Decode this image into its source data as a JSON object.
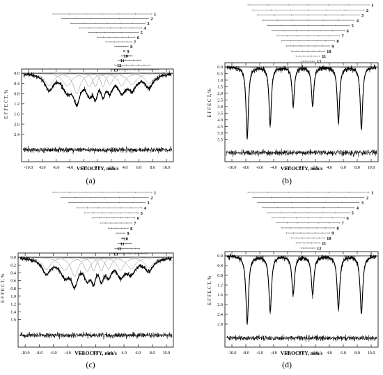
{
  "panels": [
    {
      "label": "(a)",
      "ylabel": "E F F E C T, %",
      "xlabel": "VELOCITY, mm/s",
      "yticks": [
        "0.0",
        "0.4",
        "0.8",
        "1.2",
        "1.6",
        "2.0",
        "2.4"
      ],
      "xticks": [
        "-10.0",
        "-8.0",
        "-6.0",
        "-4.0",
        "-2.0",
        "0.0",
        "2.0",
        "4.0",
        "6.0",
        "8.0",
        "10.0"
      ],
      "components": [
        "1",
        "2",
        "3",
        "4",
        "5",
        "6",
        "7",
        "8",
        "9",
        "10",
        "11",
        "12",
        "13"
      ]
    },
    {
      "label": "(b)",
      "ylabel": "E F F E C T, %",
      "xlabel": "VELOCITY, mm/s",
      "yticks": [
        "0.0",
        "0.5",
        "1.0",
        "1.5",
        "2.0",
        "2.5",
        "3.0",
        "3.5",
        "4.0",
        "4.5",
        "5.0",
        "5.5"
      ],
      "xticks": [
        "-10.0",
        "-8.0",
        "-6.0",
        "-4.0",
        "-2.0",
        "0.0",
        "2.0",
        "4.0",
        "6.0",
        "8.0",
        "10.0"
      ],
      "components": [
        "1",
        "2",
        "3",
        "4",
        "5",
        "6",
        "7",
        "8",
        "9",
        "10",
        "11",
        "12"
      ]
    },
    {
      "label": "(c)",
      "ylabel": "E F F E C T, %",
      "xlabel": "VELOCITY, mm/s",
      "yticks": [
        "0.0",
        "0.2",
        "0.4",
        "0.6",
        "0.8",
        "1.0",
        "1.2",
        "1.4",
        "1.6"
      ],
      "xticks": [
        "-10.0",
        "-8.0",
        "-6.0",
        "-4.0",
        "-2.0",
        "0.0",
        "2.0",
        "4.0",
        "6.0",
        "8.0",
        "10.0"
      ],
      "components": [
        "1",
        "2",
        "3",
        "4",
        "5",
        "6",
        "7",
        "8",
        "9",
        "10",
        "11",
        "12",
        "13"
      ]
    },
    {
      "label": "(d)",
      "ylabel": "E F F E C T, %",
      "xlabel": "VELOCITY, mm/s",
      "yticks": [
        "0.0",
        "0.4",
        "0.8",
        "1.2",
        "1.6",
        "2.0",
        "2.4",
        "2.8"
      ],
      "xticks": [
        "-10.0",
        "-8.0",
        "-6.0",
        "-4.0",
        "-2.0",
        "0.0",
        "2.0",
        "4.0",
        "6.0",
        "8.0",
        "10.0"
      ],
      "components": [
        "1",
        "2",
        "3",
        "4",
        "5",
        "6",
        "7",
        "8",
        "9",
        "10",
        "11",
        "12"
      ]
    }
  ],
  "chart_data": [
    {
      "type": "line",
      "panel": "(a)",
      "xlabel": "VELOCITY, mm/s",
      "ylabel": "E F F E C T, %",
      "xlim": [
        -11,
        11
      ],
      "ylim": [
        2.6,
        0
      ],
      "spectrum_shape": "broad",
      "peaks": [
        {
          "v": -7.0,
          "depth": 1.1,
          "w": 1.5
        },
        {
          "v": -4.4,
          "depth": 1.1,
          "w": 1.6
        },
        {
          "v": -3.0,
          "depth": 1.8,
          "w": 1.2
        },
        {
          "v": -1.2,
          "depth": 1.2,
          "w": 1.2
        },
        {
          "v": -0.3,
          "depth": 1.2,
          "w": 0.8
        },
        {
          "v": 0.8,
          "depth": 1.2,
          "w": 0.8
        },
        {
          "v": 1.8,
          "depth": 1.0,
          "w": 1.0
        },
        {
          "v": 3.5,
          "depth": 1.1,
          "w": 1.3
        },
        {
          "v": 5.0,
          "depth": 1.0,
          "w": 1.6
        },
        {
          "v": 7.5,
          "depth": 0.9,
          "w": 1.5
        }
      ],
      "observed_dips": [
        {
          "v": -3.3,
          "y": 2.2
        },
        {
          "v": -0.8,
          "y": 2.3
        },
        {
          "v": 1.0,
          "y": 2.35
        },
        {
          "v": 3.6,
          "y": 2.1
        }
      ]
    },
    {
      "type": "line",
      "panel": "(b)",
      "xlabel": "VELOCITY, mm/s",
      "ylabel": "E F F E C T, %",
      "xlim": [
        -11,
        11
      ],
      "ylim": [
        5.8,
        0
      ],
      "spectrum_shape": "sextet",
      "peaks": [
        {
          "v": -7.8,
          "depth": 5.5,
          "w": 0.4
        },
        {
          "v": -4.5,
          "depth": 4.5,
          "w": 0.4
        },
        {
          "v": -1.2,
          "depth": 3.0,
          "w": 0.4
        },
        {
          "v": 1.6,
          "depth": 3.0,
          "w": 0.4
        },
        {
          "v": 5.3,
          "depth": 4.3,
          "w": 0.4
        },
        {
          "v": 8.6,
          "depth": 4.8,
          "w": 0.4
        }
      ]
    },
    {
      "type": "line",
      "panel": "(c)",
      "xlabel": "VELOCITY, mm/s",
      "ylabel": "E F F E C T, %",
      "xlim": [
        -11,
        11
      ],
      "ylim": [
        1.7,
        0
      ],
      "spectrum_shape": "broad",
      "peaks": [
        {
          "v": -7.0,
          "depth": 0.7,
          "w": 1.5
        },
        {
          "v": -4.4,
          "depth": 0.75,
          "w": 1.6
        },
        {
          "v": -3.0,
          "depth": 1.1,
          "w": 1.2
        },
        {
          "v": -1.2,
          "depth": 0.8,
          "w": 1.2
        },
        {
          "v": -0.3,
          "depth": 0.8,
          "w": 0.8
        },
        {
          "v": 0.8,
          "depth": 0.8,
          "w": 0.8
        },
        {
          "v": 1.8,
          "depth": 0.7,
          "w": 1.0
        },
        {
          "v": 3.5,
          "depth": 0.75,
          "w": 1.3
        },
        {
          "v": 5.0,
          "depth": 0.65,
          "w": 1.6
        },
        {
          "v": 7.5,
          "depth": 0.6,
          "w": 1.5
        }
      ],
      "observed_dips": [
        {
          "v": -3.2,
          "y": 1.35
        },
        {
          "v": -0.8,
          "y": 1.4
        },
        {
          "v": 1.0,
          "y": 1.35
        },
        {
          "v": 3.5,
          "y": 1.2
        }
      ]
    },
    {
      "type": "line",
      "panel": "(d)",
      "xlabel": "VELOCITY, mm/s",
      "ylabel": "E F F E C T, %",
      "xlim": [
        -11,
        11
      ],
      "ylim": [
        3.0,
        0
      ],
      "spectrum_shape": "sextet",
      "peaks": [
        {
          "v": -7.8,
          "depth": 2.8,
          "w": 0.45
        },
        {
          "v": -4.5,
          "depth": 2.3,
          "w": 0.45
        },
        {
          "v": -1.2,
          "depth": 1.6,
          "w": 0.45
        },
        {
          "v": 1.6,
          "depth": 1.6,
          "w": 0.45
        },
        {
          "v": 5.3,
          "depth": 2.2,
          "w": 0.45
        },
        {
          "v": 8.6,
          "depth": 2.4,
          "w": 0.45
        }
      ]
    }
  ]
}
